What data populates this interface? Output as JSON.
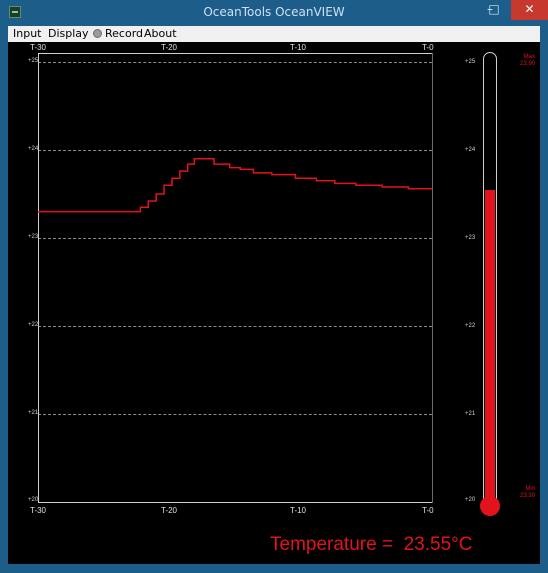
{
  "window": {
    "title": "OceanTools OceanVIEW",
    "minimize": "–",
    "maximize": "□",
    "close": "✕"
  },
  "menu": {
    "input": "Input",
    "display": "Display",
    "record": "Record",
    "about": "About"
  },
  "colors": {
    "trace": "#e0141a",
    "chrome": "#1c5d8a",
    "background": "#000000"
  },
  "top_axis": [
    "T-30",
    "T-20",
    "T-10",
    "T-0"
  ],
  "bottom_axis": [
    "T-30",
    "T-20",
    "T-10",
    "T-0"
  ],
  "y_labels": [
    "+25",
    "+24",
    "+23",
    "+22",
    "+21",
    "+20"
  ],
  "thermometer": {
    "labels": [
      "+25",
      "+24",
      "+23",
      "+22",
      "+21",
      "+20"
    ],
    "max_label": "Max",
    "max_value": "23.90",
    "min_label": "Min",
    "min_value": "23.30",
    "level": 23.55
  },
  "readout": {
    "label": "Temperature =",
    "value": "23.55°C"
  },
  "chart_data": {
    "type": "line",
    "xlim": [
      -30,
      0
    ],
    "ylim": [
      20,
      25
    ],
    "x": [
      -30,
      -22.6,
      -22.2,
      -21.6,
      -21.0,
      -20.4,
      -19.8,
      -19.2,
      -18.6,
      -18.1,
      -17.4,
      -16.6,
      -15.4,
      -14.6,
      -13.6,
      -12.2,
      -10.4,
      -8.8,
      -7.4,
      -5.8,
      -3.8,
      -1.8,
      0
    ],
    "y": [
      23.3,
      23.3,
      23.35,
      23.42,
      23.5,
      23.6,
      23.68,
      23.76,
      23.84,
      23.9,
      23.9,
      23.84,
      23.8,
      23.78,
      23.74,
      23.72,
      23.68,
      23.65,
      23.62,
      23.6,
      23.58,
      23.56,
      23.55
    ]
  }
}
